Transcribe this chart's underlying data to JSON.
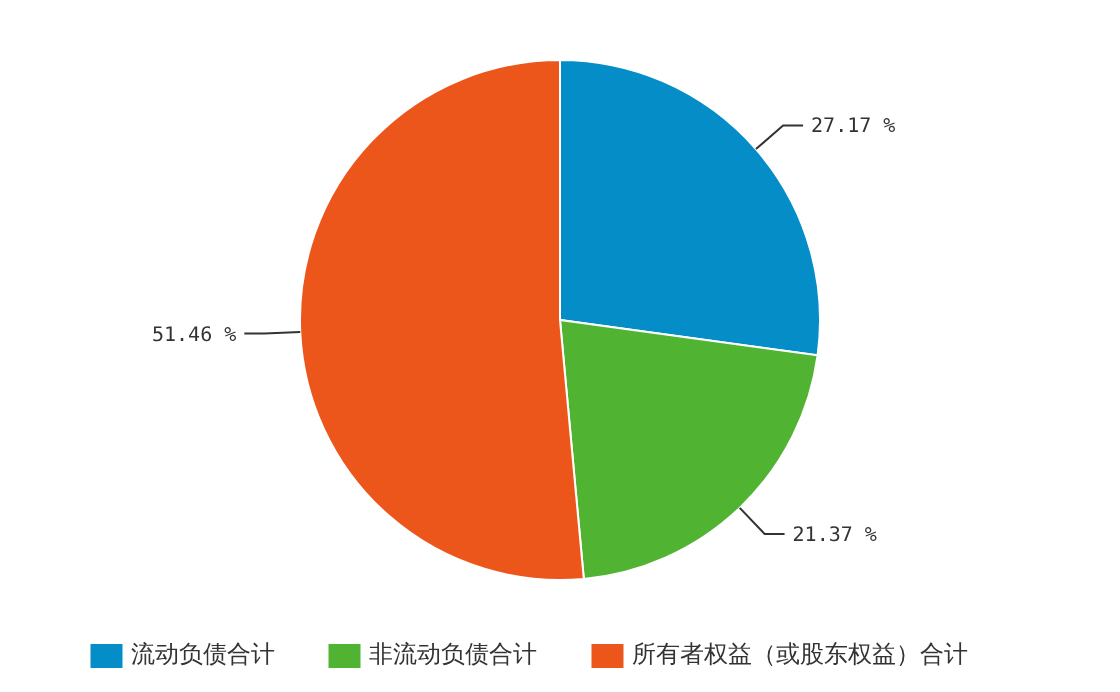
{
  "chart_data": {
    "type": "pie",
    "categories": [
      "流动负债合计",
      "非流动负债合计",
      "所有者权益（或股东权益）合计"
    ],
    "values": [
      27.17,
      21.37,
      51.46
    ],
    "colors": [
      "#058dc7",
      "#50b432",
      "#ed561b"
    ],
    "value_labels": [
      "27.17 %",
      "21.37 %",
      "51.46 %"
    ],
    "legend": "bottom"
  }
}
